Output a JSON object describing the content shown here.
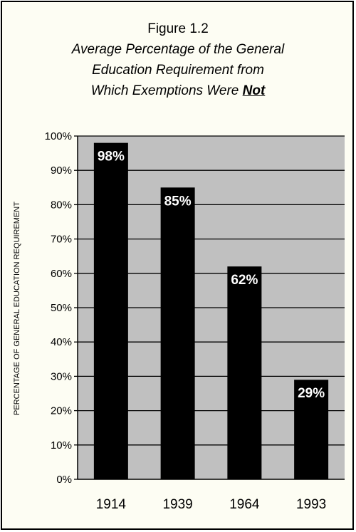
{
  "figure_label": "Figure 1.2",
  "subtitle_line1": "Average Percentage of the General",
  "subtitle_line2": "Education Requirement from",
  "subtitle_line3_prefix": "Which Exemptions Were ",
  "subtitle_emphasis": "Not",
  "colors": {
    "plot_background": "#c0c0c0",
    "bar": "#000000",
    "bar_label": "#ffffff",
    "gridline": "#000000",
    "page_background": "#fdfdf3"
  },
  "chart_data": {
    "type": "bar",
    "title": "Figure 1.2 Average Percentage of the General Education Requirement from Which Exemptions Were Not",
    "xlabel": "",
    "ylabel": "PERCENTAGE OF GENERAL EDUCATION REQUIREMENT",
    "categories": [
      "1914",
      "1939",
      "1964",
      "1993"
    ],
    "values": [
      98,
      85,
      62,
      29
    ],
    "data_labels": [
      "98%",
      "85%",
      "62%",
      "29%"
    ],
    "yticks": [
      "0%",
      "10%",
      "20%",
      "30%",
      "40%",
      "50%",
      "60%",
      "70%",
      "80%",
      "90%",
      "100%"
    ],
    "ylim": [
      0,
      100
    ],
    "grid": true,
    "legend": false
  }
}
